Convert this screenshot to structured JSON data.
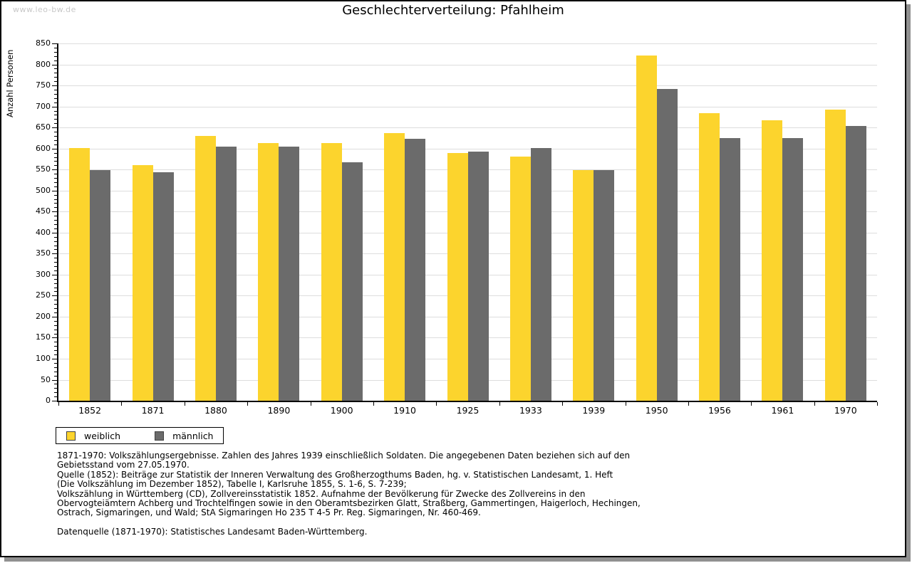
{
  "watermark": "www.leo-bw.de",
  "chart_data": {
    "type": "bar",
    "title": "Geschlechterverteilung: Pfahlheim",
    "ylabel": "Anzahl Personen",
    "xlabel": "",
    "ylim": [
      0,
      850
    ],
    "ytick_step": 50,
    "y_minor_tick_step": 10,
    "grid": true,
    "legend_position": "bottom-left",
    "categories": [
      "1852",
      "1871",
      "1880",
      "1890",
      "1900",
      "1910",
      "1925",
      "1933",
      "1939",
      "1950",
      "1956",
      "1961",
      "1970"
    ],
    "series": [
      {
        "name": "weiblich",
        "color": "#FCD42D",
        "values": [
          601,
          561,
          630,
          613,
          613,
          637,
          589,
          581,
          548,
          822,
          684,
          667,
          693
        ]
      },
      {
        "name": "männlich",
        "color": "#6B6B6B",
        "values": [
          548,
          543,
          604,
          605,
          567,
          623,
          593,
          602,
          548,
          741,
          625,
          625,
          654
        ]
      }
    ]
  },
  "footnotes": {
    "lines": [
      "1871-1970: Volkszählungsergebnisse. Zahlen des Jahres 1939 einschließlich Soldaten. Die angegebenen Daten beziehen sich auf den",
      "Gebietsstand vom 27.05.1970.",
      "Quelle (1852): Beiträge zur Statistik der Inneren Verwaltung des Großherzogthums Baden, hg. v. Statistischen Landesamt, 1. Heft",
      "(Die Volkszählung im Dezember 1852), Tabelle I, Karlsruhe 1855, S. 1-6, S. 7-239;",
      "Volkszählung in Württemberg (CD), Zollvereinsstatistik 1852. Aufnahme der Bevölkerung für Zwecke des Zollvereins in den",
      "Obervogteiämtern Achberg und Trochtelfingen sowie in den Oberamtsbezirken Glatt, Straßberg, Gammertingen, Haigerloch, Hechingen,",
      "Ostrach, Sigmaringen, und Wald; StA Sigmaringen Ho 235 T 4-5 Pr. Reg. Sigmaringen, Nr. 460-469."
    ],
    "datasource": "Datenquelle (1871-1970): Statistisches Landesamt Baden-Württemberg."
  },
  "colors": {
    "female_bar": "#FCD42D",
    "male_bar": "#6B6B6B",
    "gridline": "#DDDDDD",
    "axis": "#000000",
    "watermark_text": "#C8C8C8",
    "frame_shadow": "#909090"
  }
}
